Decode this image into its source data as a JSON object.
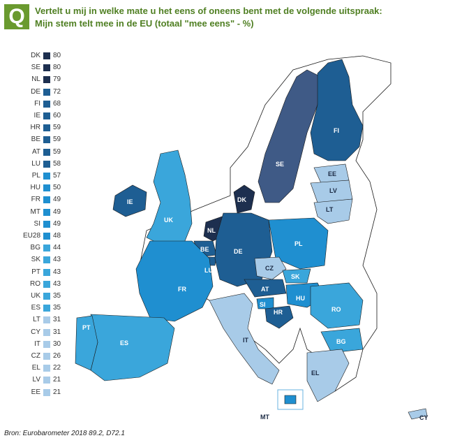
{
  "question": {
    "badge": "Q",
    "line1": "Vertelt u mij in welke mate u het eens of oneens bent met de volgende uitspraak:",
    "line2": "Mijn stem telt mee in de EU (totaal \"mee eens\" - %)"
  },
  "legend": [
    {
      "code": "DK",
      "value": "80",
      "color": "#1d2f4f"
    },
    {
      "code": "SE",
      "value": "80",
      "color": "#1d2f4f"
    },
    {
      "code": "NL",
      "value": "79",
      "color": "#1d2f4f"
    },
    {
      "code": "DE",
      "value": "72",
      "color": "#1e5e93"
    },
    {
      "code": "FI",
      "value": "68",
      "color": "#1e5e93"
    },
    {
      "code": "IE",
      "value": "60",
      "color": "#1e5e93"
    },
    {
      "code": "HR",
      "value": "59",
      "color": "#1e5e93"
    },
    {
      "code": "BE",
      "value": "59",
      "color": "#1e5e93"
    },
    {
      "code": "AT",
      "value": "59",
      "color": "#1e5e93"
    },
    {
      "code": "LU",
      "value": "58",
      "color": "#1e5e93"
    },
    {
      "code": "PL",
      "value": "57",
      "color": "#1f8fd0"
    },
    {
      "code": "HU",
      "value": "50",
      "color": "#1f8fd0"
    },
    {
      "code": "FR",
      "value": "49",
      "color": "#1f8fd0"
    },
    {
      "code": "MT",
      "value": "49",
      "color": "#1f8fd0"
    },
    {
      "code": "SI",
      "value": "49",
      "color": "#1f8fd0"
    },
    {
      "code": "EU28",
      "value": "48",
      "color": "#1f8fd0"
    },
    {
      "code": "BG",
      "value": "44",
      "color": "#3aa6db"
    },
    {
      "code": "SK",
      "value": "43",
      "color": "#3aa6db"
    },
    {
      "code": "PT",
      "value": "43",
      "color": "#3aa6db"
    },
    {
      "code": "RO",
      "value": "43",
      "color": "#3aa6db"
    },
    {
      "code": "UK",
      "value": "35",
      "color": "#3aa6db"
    },
    {
      "code": "ES",
      "value": "35",
      "color": "#3aa6db"
    },
    {
      "code": "LT",
      "value": "31",
      "color": "#a8cbe8"
    },
    {
      "code": "CY",
      "value": "31",
      "color": "#a8cbe8"
    },
    {
      "code": "IT",
      "value": "30",
      "color": "#a8cbe8"
    },
    {
      "code": "CZ",
      "value": "26",
      "color": "#a8cbe8"
    },
    {
      "code": "EL",
      "value": "22",
      "color": "#a8cbe8"
    },
    {
      "code": "LV",
      "value": "21",
      "color": "#a8cbe8"
    },
    {
      "code": "EE",
      "value": "21",
      "color": "#a8cbe8"
    }
  ],
  "map_labels": {
    "FI": "FI",
    "SE": "SE",
    "EE": "EE",
    "LV": "LV",
    "LT": "LT",
    "DK": "DK",
    "IE": "IE",
    "UK": "UK",
    "NL": "NL",
    "BE": "BE",
    "LU": "LU",
    "DE": "DE",
    "PL": "PL",
    "CZ": "CZ",
    "SK": "SK",
    "AT": "AT",
    "HU": "HU",
    "SI": "SI",
    "HR": "HR",
    "RO": "RO",
    "BG": "BG",
    "FR": "FR",
    "PT": "PT",
    "ES": "ES",
    "IT": "IT",
    "EL": "EL",
    "MT": "MT",
    "CY": "CY"
  },
  "source": "Bron: Eurobarometer 2018 89.2, D72.1"
}
